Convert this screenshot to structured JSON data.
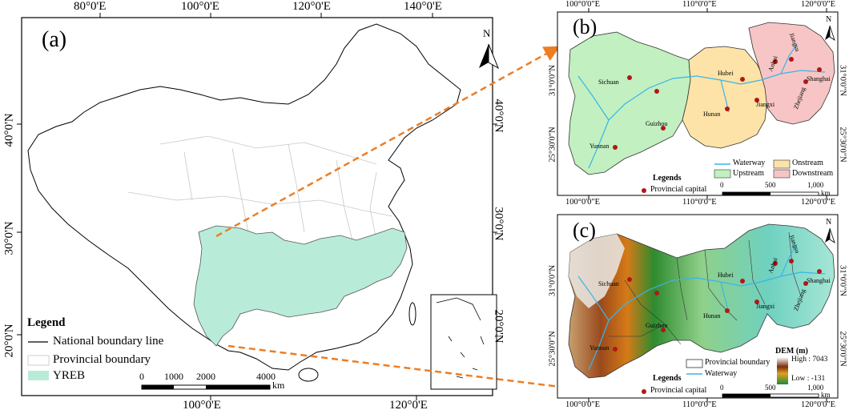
{
  "panelA": {
    "label": "(a)",
    "north": "N",
    "top_ticks": [
      "80°0'E",
      "100°0'E",
      "120°0'E",
      "140°0'E"
    ],
    "bottom_ticks": [
      "100°0'E",
      "120°0'E"
    ],
    "left_ticks": [
      "40°0'N",
      "30°0'N",
      "20°0'N"
    ],
    "right_ticks": [
      "40°0'N",
      "30°0'N",
      "20°0'N"
    ],
    "legend": {
      "title": "Legend",
      "items": [
        "National boundary line",
        "Provincial boundary",
        "YREB"
      ]
    },
    "scale": {
      "ticks": [
        "0",
        "1000",
        "2000",
        "4000"
      ],
      "unit": "km"
    }
  },
  "panelB": {
    "label": "(b)",
    "north": "N",
    "top_ticks": [
      "100°0'0\"E",
      "110°0'0\"E",
      "120°0'0\"E"
    ],
    "bottom_ticks": [
      "100°0'0\"E",
      "110°0'0\"E",
      "120°0'0\"E"
    ],
    "left_ticks": [
      "31°0'0\"N",
      "25°30'0\"N"
    ],
    "right_ticks": [
      "31°0'0\"N",
      "25°30'0\"N"
    ],
    "provinces": [
      "Sichuan",
      "Guizhou",
      "Yunnan",
      "Hubei",
      "Hunan",
      "Jiangxi",
      "Anhui",
      "Jiangsu",
      "Zhejiang",
      "Shanghai"
    ],
    "legend": {
      "title": "Legends",
      "capital": "Provincial capital",
      "waterway": "Waterway",
      "upstream": "Upstream",
      "onstream": "Onstream",
      "downstream": "Downstream"
    },
    "scale": {
      "ticks": [
        "0",
        "500",
        "1,000"
      ],
      "unit": "km"
    }
  },
  "panelC": {
    "label": "(c)",
    "north": "N",
    "bottom_ticks": [
      "100°0'0\"E",
      "110°0'0\"E",
      "120°0'0\"E"
    ],
    "left_ticks": [
      "31°0'0\"N",
      "25°30'0\"N"
    ],
    "right_ticks": [
      "31°0'0\"N",
      "25°30'0\"N"
    ],
    "provinces": [
      "Sichuan",
      "Guizhou",
      "Yunnan",
      "Hubei",
      "Hunan",
      "Jiangxi",
      "Anhui",
      "Jiangsu",
      "Zhejiang",
      "Shanghai"
    ],
    "legend": {
      "title": "Legends",
      "capital": "Provincial capital",
      "boundary": "Provincial boundary",
      "waterway": "Waterway",
      "dem_title": "DEM (m)",
      "dem_high": "High : 7043",
      "dem_low": "Low : -131"
    },
    "scale": {
      "ticks": [
        "0",
        "500",
        "1,000"
      ],
      "unit": "km"
    }
  },
  "colors": {
    "yreb": "#b8ecd9",
    "upstream": "#c2f0c0",
    "onstream": "#fde3a8",
    "downstream": "#f7c5c5",
    "waterway": "#38b5e8",
    "capital": "#b01818",
    "arrow": "#ef7d22",
    "dem_high": "#ffffff",
    "dem_mid": "#c05a10",
    "dem_low": "#1e8a3a"
  }
}
